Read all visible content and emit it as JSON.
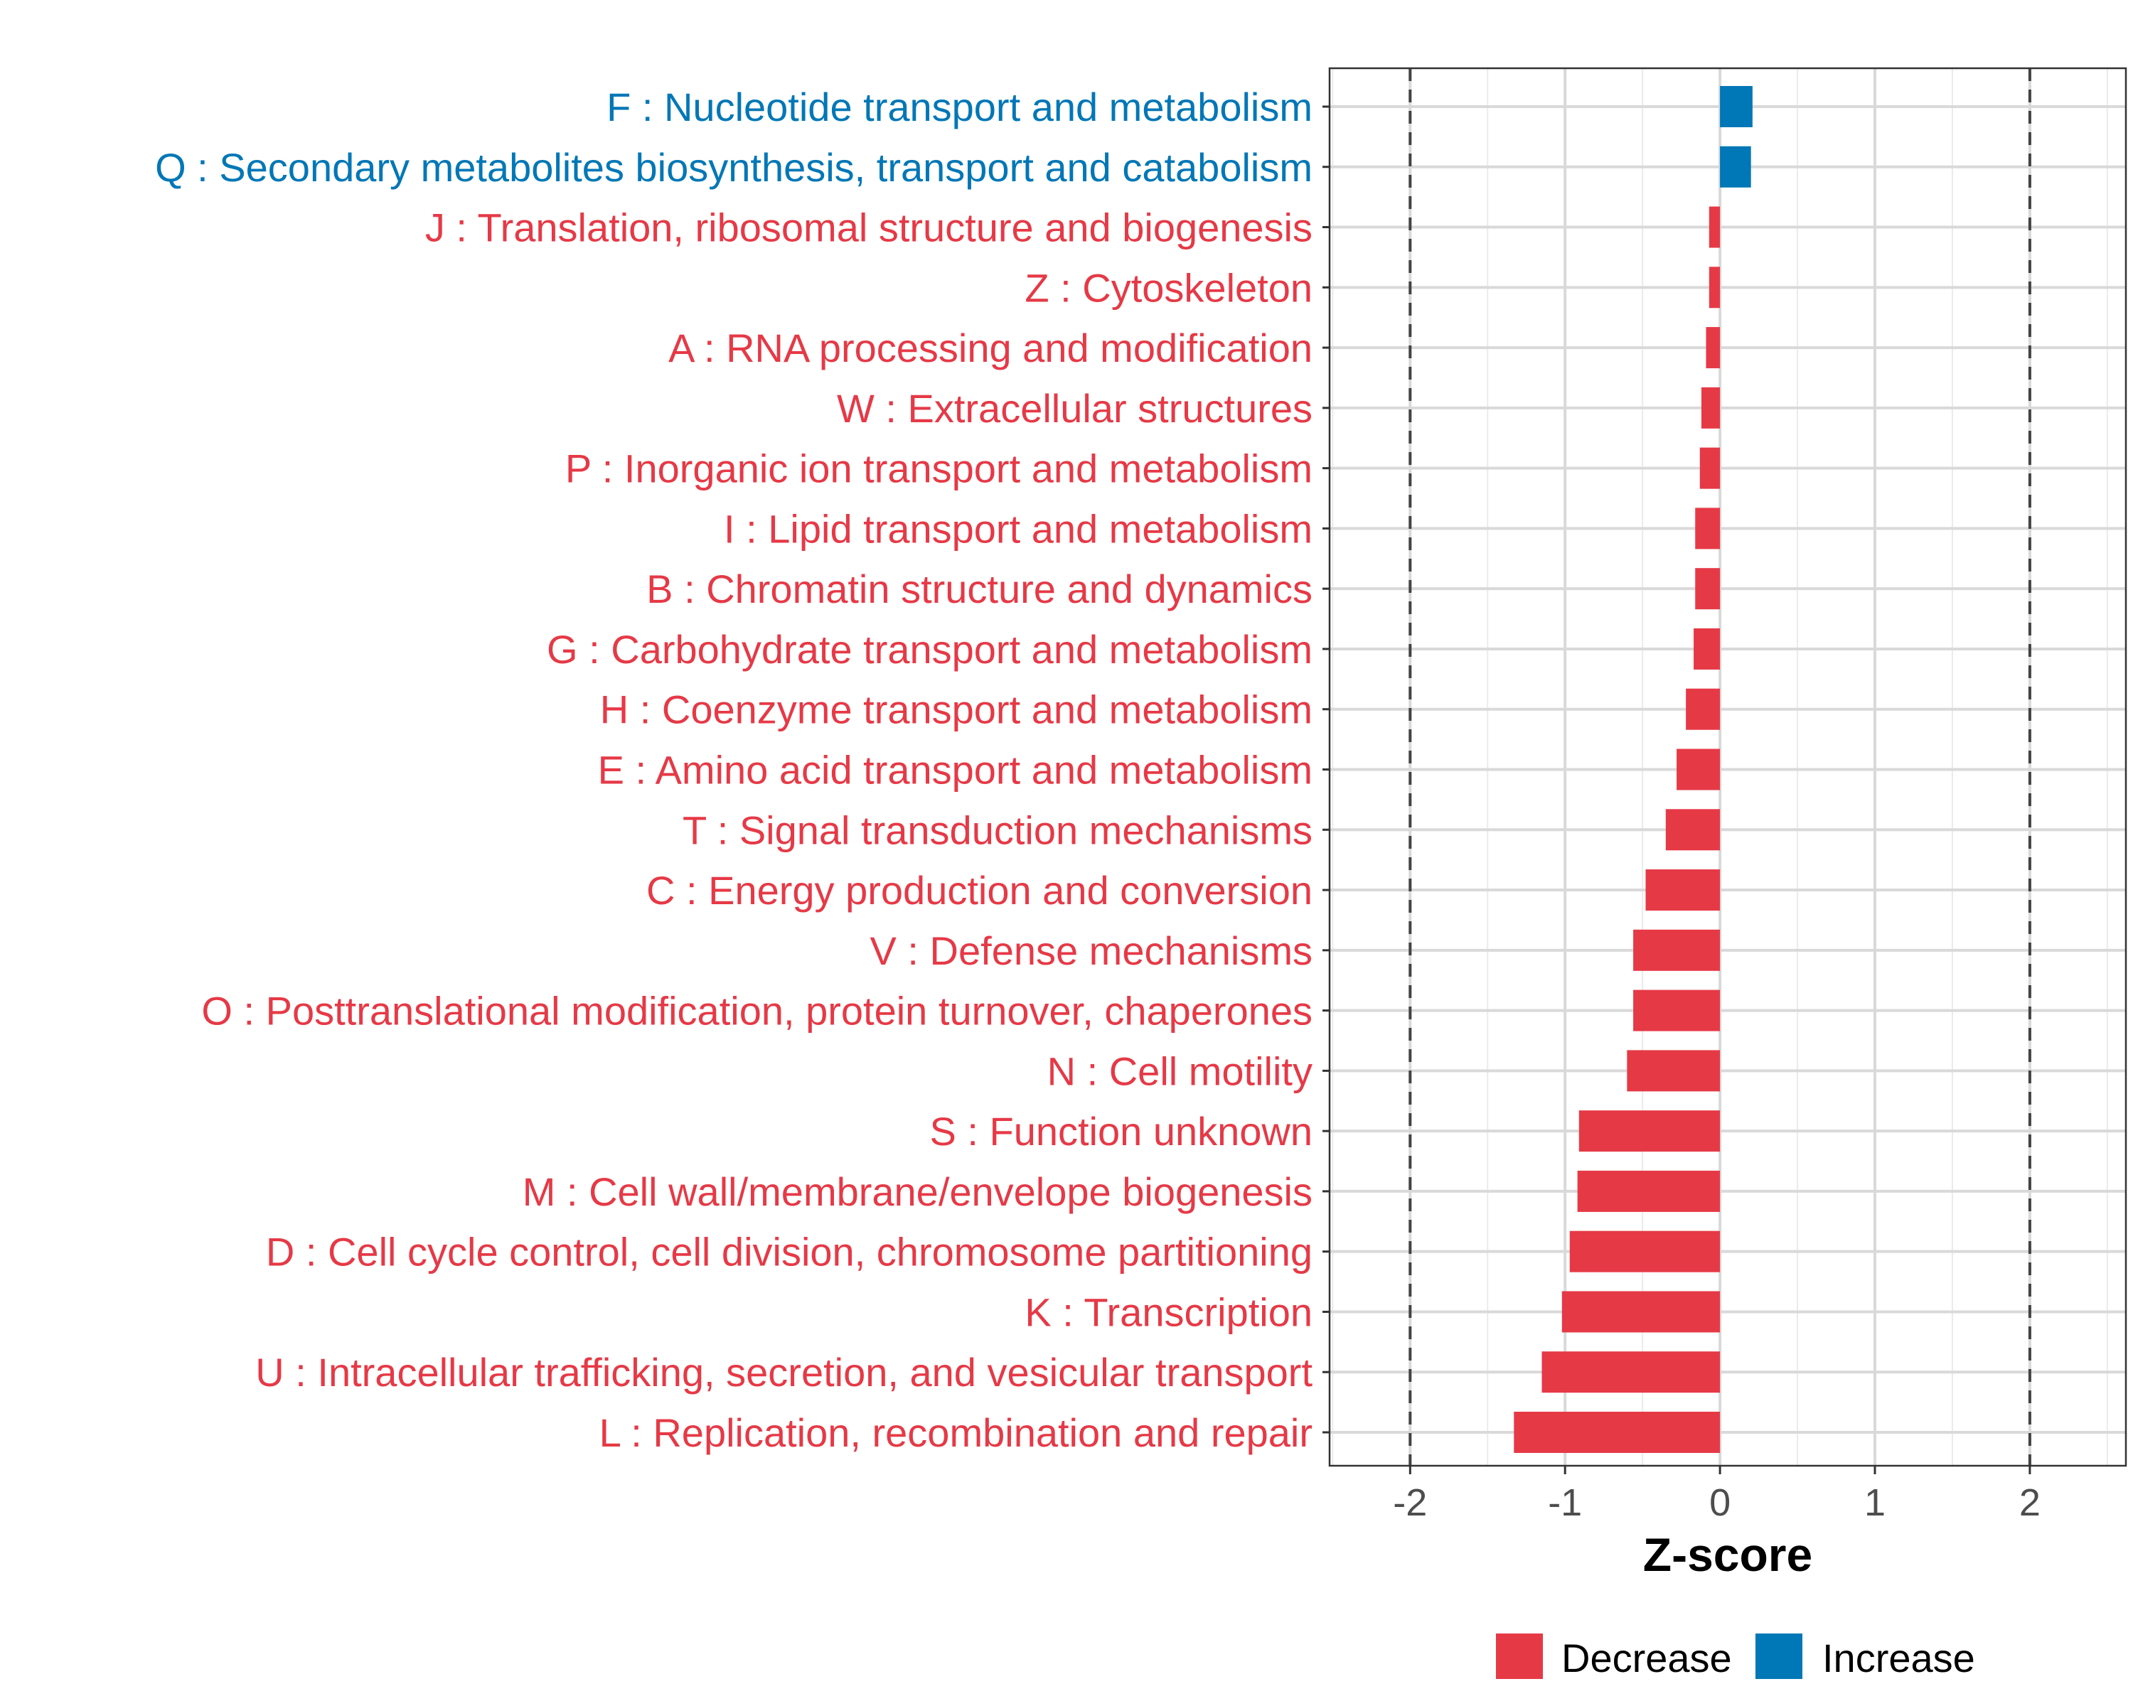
{
  "chart_data": {
    "type": "bar",
    "orientation": "horizontal",
    "title": "",
    "xlabel": "Z-score",
    "ylabel": "",
    "xlim": [
      -2.52,
      2.62
    ],
    "xticks": [
      -2,
      -1,
      0,
      1,
      2
    ],
    "xtick_labels": [
      "-2",
      "-1",
      "0",
      "1",
      "2"
    ],
    "reference_lines": [
      -2,
      2
    ],
    "grid": true,
    "legend_position": "bottom",
    "legend": [
      {
        "label": "Decrease",
        "color": "#E63946"
      },
      {
        "label": "Increase",
        "color": "#0077B6"
      }
    ],
    "categories": [
      "F : Nucleotide transport and metabolism",
      "Q : Secondary metabolites biosynthesis, transport and catabolism",
      "J : Translation, ribosomal structure and biogenesis",
      "Z : Cytoskeleton",
      "A : RNA processing and modification",
      "W : Extracellular structures",
      "P : Inorganic ion transport and metabolism",
      "I : Lipid transport and metabolism",
      "B : Chromatin structure and dynamics",
      "G : Carbohydrate transport and metabolism",
      "H : Coenzyme transport and metabolism",
      "E : Amino acid transport and metabolism",
      "T : Signal transduction mechanisms",
      "C : Energy production and conversion",
      "V : Defense mechanisms",
      "O : Posttranslational modification, protein turnover, chaperones",
      "N : Cell motility",
      "S : Function unknown",
      "M : Cell wall/membrane/envelope biogenesis",
      "D : Cell cycle control, cell division, chromosome partitioning",
      "K : Transcription",
      "U : Intracellular trafficking, secretion, and vesicular transport",
      "L : Replication, recombination and repair"
    ],
    "values": [
      0.21,
      0.2,
      -0.07,
      -0.07,
      -0.09,
      -0.12,
      -0.13,
      -0.16,
      -0.16,
      -0.17,
      -0.22,
      -0.28,
      -0.35,
      -0.48,
      -0.56,
      -0.56,
      -0.6,
      -0.91,
      -0.92,
      -0.97,
      -1.02,
      -1.15,
      -1.33
    ]
  }
}
